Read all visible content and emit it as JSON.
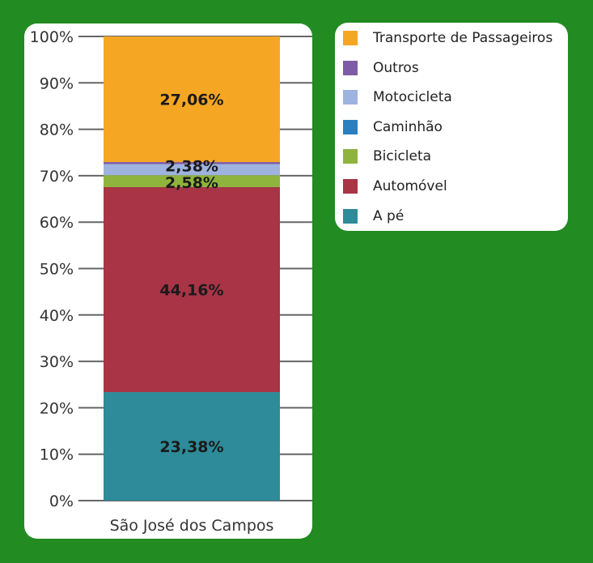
{
  "chart_data": {
    "type": "bar",
    "stacked": true,
    "categories": [
      "São José dos Campos"
    ],
    "series": [
      {
        "name": "A pé",
        "values": [
          23.38
        ],
        "label": "23,38%",
        "color": "#2e8b99"
      },
      {
        "name": "Automóvel",
        "values": [
          44.16
        ],
        "label": "44,16%",
        "color": "#a83446"
      },
      {
        "name": "Bicicleta",
        "values": [
          2.58
        ],
        "label": "2,58%",
        "color": "#8fb43d"
      },
      {
        "name": "Caminhão",
        "values": [
          0
        ],
        "label": "",
        "color": "#2a7fc1"
      },
      {
        "name": "Motocicleta",
        "values": [
          2.38
        ],
        "label": "2,38%",
        "color": "#9eb3df"
      },
      {
        "name": "Outros",
        "values": [
          0.44
        ],
        "label": "",
        "color": "#7d5ba6"
      },
      {
        "name": "Transporte de Passageiros",
        "values": [
          27.06
        ],
        "label": "27,06%",
        "color": "#f5a623"
      }
    ],
    "y_ticks": [
      "0%",
      "10%",
      "20%",
      "30%",
      "40%",
      "50%",
      "60%",
      "70%",
      "80%",
      "90%",
      "100%"
    ],
    "ylim": [
      0,
      100
    ],
    "grid": true,
    "legend": {
      "placement": "right",
      "order": [
        "Transporte de Passageiros",
        "Outros",
        "Motocicleta",
        "Caminhão",
        "Bicicleta",
        "Automóvel",
        "A pé"
      ]
    }
  }
}
